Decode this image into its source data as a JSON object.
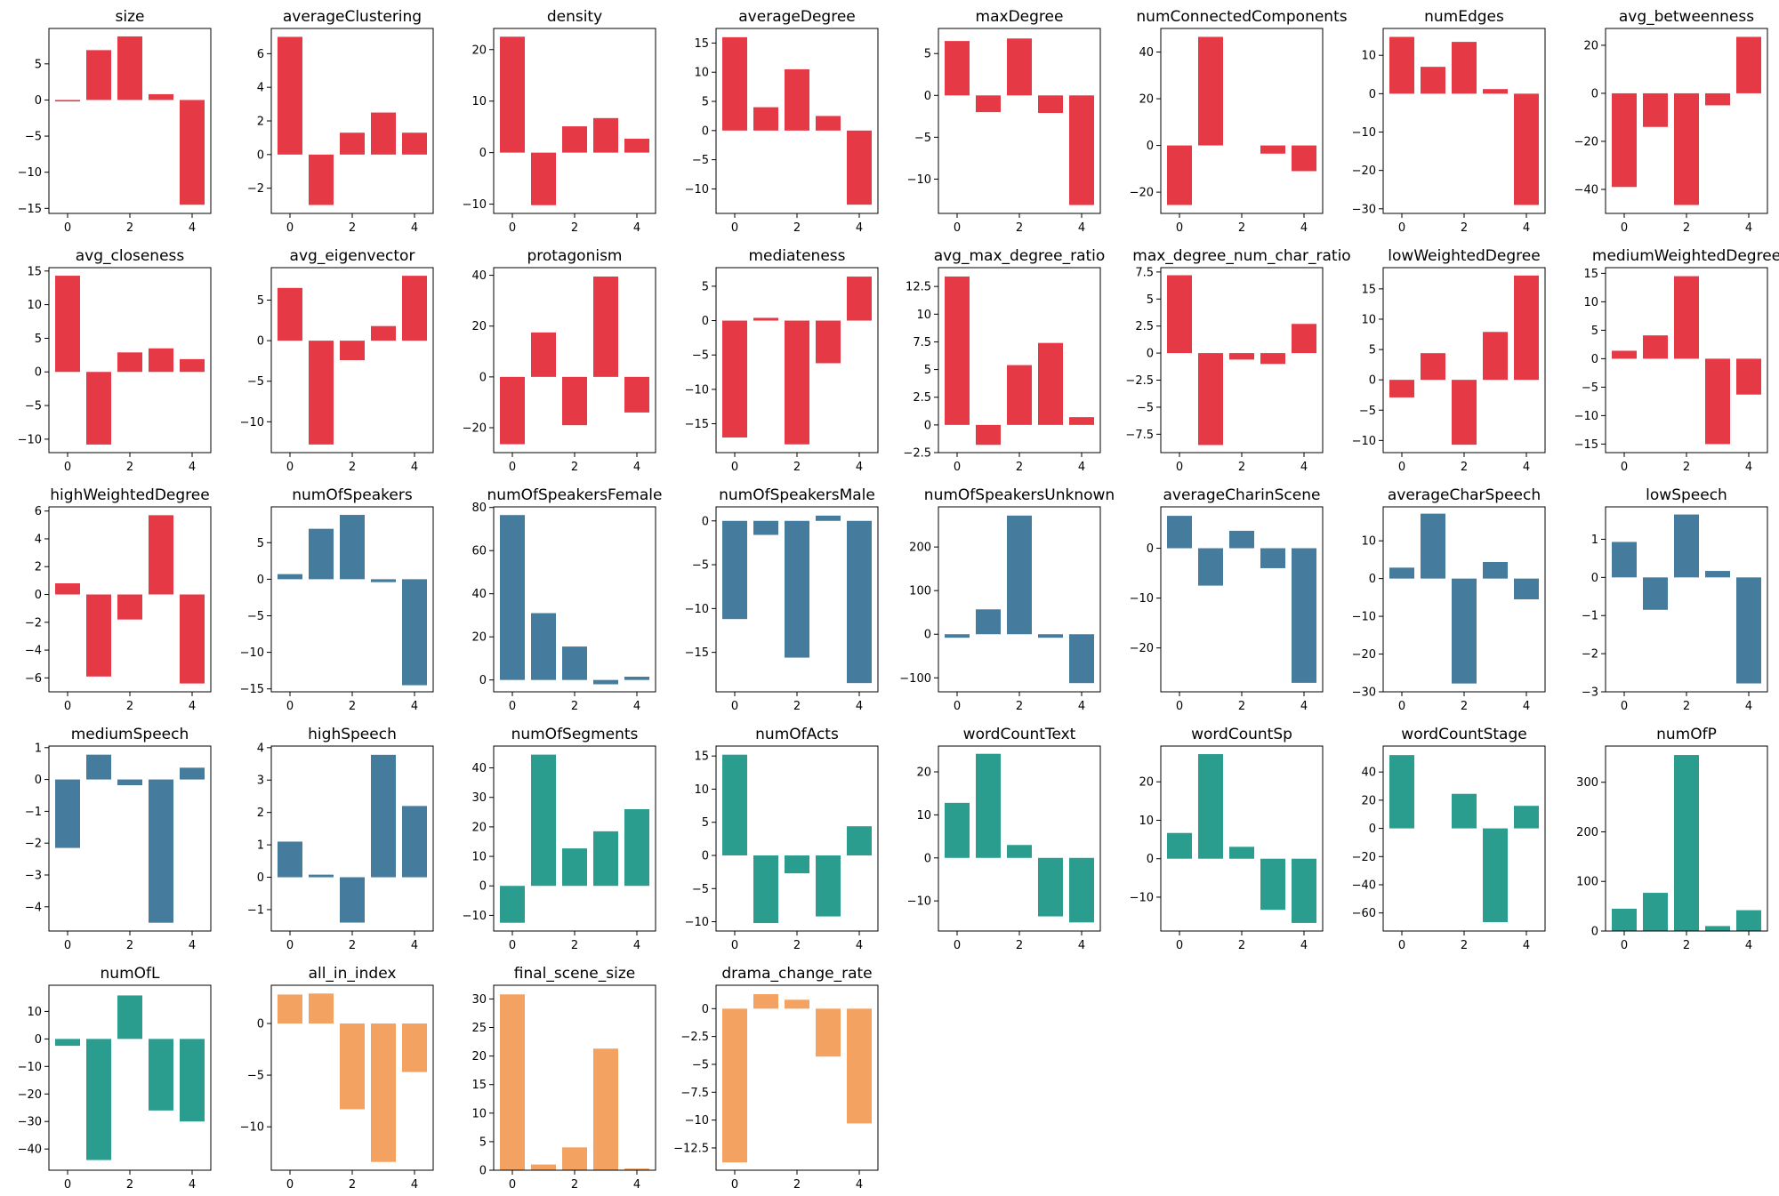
{
  "colors": {
    "red": "#e63946",
    "blue": "#457b9d",
    "teal": "#2a9d8f",
    "orange": "#f4a261"
  },
  "chart_data": [
    {
      "type": "bar",
      "title": "size",
      "categories": [
        0,
        1,
        2,
        3,
        4
      ],
      "values": [
        -0.2,
        6.9,
        8.8,
        0.8,
        -14.5
      ],
      "ylim": [
        -15.7,
        9.9
      ],
      "yticks": [
        -15,
        -10,
        -5,
        0,
        5
      ],
      "color": "red"
    },
    {
      "type": "bar",
      "title": "averageClustering",
      "categories": [
        0,
        1,
        2,
        3,
        4
      ],
      "values": [
        7.0,
        -3.0,
        1.3,
        2.5,
        1.3
      ],
      "ylim": [
        -3.5,
        7.5
      ],
      "yticks": [
        -2,
        0,
        2,
        4,
        6
      ],
      "color": "red"
    },
    {
      "type": "bar",
      "title": "density",
      "categories": [
        0,
        1,
        2,
        3,
        4
      ],
      "values": [
        22.5,
        -10.2,
        5.1,
        6.7,
        2.7
      ],
      "ylim": [
        -11.8,
        24.1
      ],
      "yticks": [
        -10,
        0,
        10,
        20
      ],
      "color": "red"
    },
    {
      "type": "bar",
      "title": "averageDegree",
      "categories": [
        0,
        1,
        2,
        3,
        4
      ],
      "values": [
        16.0,
        4.0,
        10.5,
        2.5,
        -12.7
      ],
      "ylim": [
        -14.2,
        17.5
      ],
      "yticks": [
        -10,
        -5,
        0,
        5,
        10,
        15
      ],
      "color": "red"
    },
    {
      "type": "bar",
      "title": "maxDegree",
      "categories": [
        0,
        1,
        2,
        3,
        4
      ],
      "values": [
        6.5,
        -2.0,
        6.8,
        -2.1,
        -13.1
      ],
      "ylim": [
        -14.1,
        8.0
      ],
      "yticks": [
        -10,
        -5,
        0,
        5
      ],
      "color": "red"
    },
    {
      "type": "bar",
      "title": "numConnectedComponents",
      "categories": [
        0,
        1,
        2,
        3,
        4
      ],
      "values": [
        -25.5,
        46.5,
        0,
        -3.5,
        -11.0
      ],
      "ylim": [
        -29.1,
        50.1
      ],
      "yticks": [
        -20,
        0,
        20,
        40
      ],
      "color": "red"
    },
    {
      "type": "bar",
      "title": "numEdges",
      "categories": [
        0,
        1,
        2,
        3,
        4
      ],
      "values": [
        14.8,
        7.0,
        13.5,
        1.2,
        -29.0
      ],
      "ylim": [
        -31.2,
        17.0
      ],
      "yticks": [
        -30,
        -20,
        -10,
        0,
        10
      ],
      "color": "red"
    },
    {
      "type": "bar",
      "title": "avg_betweenness",
      "categories": [
        0,
        1,
        2,
        3,
        4
      ],
      "values": [
        -39.0,
        -14.0,
        -46.5,
        -5.0,
        23.5
      ],
      "ylim": [
        -50.0,
        27.0
      ],
      "yticks": [
        -40,
        -20,
        0,
        20
      ],
      "color": "red"
    },
    {
      "type": "bar",
      "title": "avg_closeness",
      "categories": [
        0,
        1,
        2,
        3,
        4
      ],
      "values": [
        14.3,
        -10.8,
        2.9,
        3.5,
        1.9
      ],
      "ylim": [
        -12.0,
        15.5
      ],
      "yticks": [
        -10,
        -5,
        0,
        5,
        10,
        15
      ],
      "color": "red"
    },
    {
      "type": "bar",
      "title": "avg_eigenvector",
      "categories": [
        0,
        1,
        2,
        3,
        4
      ],
      "values": [
        6.5,
        -12.8,
        -2.4,
        1.8,
        8.0
      ],
      "ylim": [
        -13.8,
        9.0
      ],
      "yticks": [
        -10,
        -5,
        0,
        5
      ],
      "color": "red"
    },
    {
      "type": "bar",
      "title": "protagonism",
      "categories": [
        0,
        1,
        2,
        3,
        4
      ],
      "values": [
        -26.5,
        17.5,
        -19.0,
        39.5,
        -14.0
      ],
      "ylim": [
        -29.8,
        43.0
      ],
      "yticks": [
        -20,
        0,
        20,
        40
      ],
      "color": "red"
    },
    {
      "type": "bar",
      "title": "mediateness",
      "categories": [
        0,
        1,
        2,
        3,
        4
      ],
      "values": [
        -17.0,
        0.4,
        -18.0,
        -6.2,
        6.4
      ],
      "ylim": [
        -19.2,
        7.7
      ],
      "yticks": [
        -15,
        -10,
        -5,
        0,
        5
      ],
      "color": "red"
    },
    {
      "type": "bar",
      "title": "avg_max_degree_ratio",
      "categories": [
        0,
        1,
        2,
        3,
        4
      ],
      "values": [
        13.4,
        -1.8,
        5.4,
        7.4,
        0.7
      ],
      "ylim": [
        -2.5,
        14.2
      ],
      "yticks": [
        -2.5,
        0.0,
        2.5,
        5.0,
        7.5,
        10.0,
        12.5
      ],
      "color": "red"
    },
    {
      "type": "bar",
      "title": "max_degree_num_char_ratio",
      "categories": [
        0,
        1,
        2,
        3,
        4
      ],
      "values": [
        7.2,
        -8.5,
        -0.6,
        -1.0,
        2.7
      ],
      "ylim": [
        -9.2,
        7.9
      ],
      "yticks": [
        -7.5,
        -5.0,
        -2.5,
        0.0,
        2.5,
        5.0,
        7.5
      ],
      "color": "red"
    },
    {
      "type": "bar",
      "title": "lowWeightedDegree",
      "categories": [
        0,
        1,
        2,
        3,
        4
      ],
      "values": [
        -2.9,
        4.4,
        -10.7,
        7.9,
        17.2
      ],
      "ylim": [
        -12.0,
        18.5
      ],
      "yticks": [
        -10,
        -5,
        0,
        5,
        10,
        15
      ],
      "color": "red"
    },
    {
      "type": "bar",
      "title": "mediumWeightedDegree",
      "categories": [
        0,
        1,
        2,
        3,
        4
      ],
      "values": [
        1.4,
        4.1,
        14.5,
        -15.0,
        -6.3
      ],
      "ylim": [
        -16.5,
        16.0
      ],
      "yticks": [
        -15,
        -10,
        -5,
        0,
        5,
        10,
        15
      ],
      "color": "red"
    },
    {
      "type": "bar",
      "title": "highWeightedDegree",
      "categories": [
        0,
        1,
        2,
        3,
        4
      ],
      "values": [
        0.8,
        -5.9,
        -1.8,
        5.7,
        -6.4
      ],
      "ylim": [
        -7.0,
        6.3
      ],
      "yticks": [
        -6,
        -4,
        -2,
        0,
        2,
        4,
        6
      ],
      "color": "red"
    },
    {
      "type": "bar",
      "title": "numOfSpeakers",
      "categories": [
        0,
        1,
        2,
        3,
        4
      ],
      "values": [
        0.7,
        6.9,
        8.8,
        -0.4,
        -14.5
      ],
      "ylim": [
        -15.4,
        9.9
      ],
      "yticks": [
        -15,
        -10,
        -5,
        0,
        5
      ],
      "color": "blue"
    },
    {
      "type": "bar",
      "title": "numOfSpeakersFemale",
      "categories": [
        0,
        1,
        2,
        3,
        4
      ],
      "values": [
        76.5,
        31.0,
        15.5,
        -2.0,
        1.5
      ],
      "ylim": [
        -5.5,
        80.3
      ],
      "yticks": [
        0,
        20,
        40,
        60,
        80
      ],
      "color": "blue"
    },
    {
      "type": "bar",
      "title": "numOfSpeakersMale",
      "categories": [
        0,
        1,
        2,
        3,
        4
      ],
      "values": [
        -11.2,
        -1.6,
        -15.6,
        0.6,
        -18.5
      ],
      "ylim": [
        -19.5,
        1.6
      ],
      "yticks": [
        -15,
        -10,
        -5,
        0
      ],
      "color": "blue"
    },
    {
      "type": "bar",
      "title": "numOfSpeakersUnknown",
      "categories": [
        0,
        1,
        2,
        3,
        4
      ],
      "values": [
        -8.0,
        57.0,
        272.0,
        -8.0,
        -112.0
      ],
      "ylim": [
        -132.0,
        292.0
      ],
      "yticks": [
        -100,
        0,
        100,
        200
      ],
      "color": "blue"
    },
    {
      "type": "bar",
      "title": "averageCharinScene",
      "categories": [
        0,
        1,
        2,
        3,
        4
      ],
      "values": [
        6.5,
        -7.5,
        3.5,
        -4.0,
        -27.0
      ],
      "ylim": [
        -28.8,
        8.3
      ],
      "yticks": [
        -20,
        -10,
        0
      ],
      "color": "blue"
    },
    {
      "type": "bar",
      "title": "averageCharSpeech",
      "categories": [
        0,
        1,
        2,
        3,
        4
      ],
      "values": [
        2.9,
        17.2,
        -27.8,
        4.4,
        -5.5
      ],
      "ylim": [
        -30.0,
        19.0
      ],
      "yticks": [
        -30,
        -20,
        -10,
        0,
        10
      ],
      "color": "blue"
    },
    {
      "type": "bar",
      "title": "lowSpeech",
      "categories": [
        0,
        1,
        2,
        3,
        4
      ],
      "values": [
        0.93,
        -0.85,
        1.65,
        0.17,
        -2.78
      ],
      "ylim": [
        -3.0,
        1.85
      ],
      "yticks": [
        -3,
        -2,
        -1,
        0,
        1
      ],
      "color": "blue"
    },
    {
      "type": "bar",
      "title": "mediumSpeech",
      "categories": [
        0,
        1,
        2,
        3,
        4
      ],
      "values": [
        -2.15,
        0.78,
        -0.18,
        -4.5,
        0.37
      ],
      "ylim": [
        -4.76,
        1.05
      ],
      "yticks": [
        -4,
        -3,
        -2,
        -1,
        0,
        1
      ],
      "color": "blue"
    },
    {
      "type": "bar",
      "title": "highSpeech",
      "categories": [
        0,
        1,
        2,
        3,
        4
      ],
      "values": [
        1.1,
        0.08,
        -1.4,
        3.78,
        2.2
      ],
      "ylim": [
        -1.66,
        4.05
      ],
      "yticks": [
        -1,
        0,
        1,
        2,
        3,
        4
      ],
      "color": "blue"
    },
    {
      "type": "bar",
      "title": "numOfSegments",
      "categories": [
        0,
        1,
        2,
        3,
        4
      ],
      "values": [
        -12.5,
        44.5,
        12.7,
        18.5,
        26.0
      ],
      "ylim": [
        -15.3,
        47.4
      ],
      "yticks": [
        -10,
        0,
        10,
        20,
        30,
        40
      ],
      "color": "teal"
    },
    {
      "type": "bar",
      "title": "numOfActs",
      "categories": [
        0,
        1,
        2,
        3,
        4
      ],
      "values": [
        15.2,
        -10.2,
        -2.7,
        -9.2,
        4.4
      ],
      "ylim": [
        -11.4,
        16.5
      ],
      "yticks": [
        -10,
        -5,
        0,
        5,
        10,
        15
      ],
      "color": "teal"
    },
    {
      "type": "bar",
      "title": "wordCountText",
      "categories": [
        0,
        1,
        2,
        3,
        4
      ],
      "values": [
        12.8,
        24.2,
        3.0,
        -13.6,
        -15.0
      ],
      "ylim": [
        -17.0,
        26.0
      ],
      "yticks": [
        -10,
        0,
        10,
        20
      ],
      "color": "teal"
    },
    {
      "type": "bar",
      "title": "wordCountSp",
      "categories": [
        0,
        1,
        2,
        3,
        4
      ],
      "values": [
        6.7,
        27.2,
        3.1,
        -13.3,
        -16.7
      ],
      "ylim": [
        -18.8,
        29.3
      ],
      "yticks": [
        -10,
        0,
        10,
        20
      ],
      "color": "teal"
    },
    {
      "type": "bar",
      "title": "wordCountStage",
      "categories": [
        0,
        1,
        2,
        3,
        4
      ],
      "values": [
        52.0,
        0,
        24.5,
        -66.5,
        16.0
      ],
      "ylim": [
        -72.8,
        58.4
      ],
      "yticks": [
        -60,
        -40,
        -20,
        0,
        20,
        40
      ],
      "color": "teal"
    },
    {
      "type": "bar",
      "title": "numOfP",
      "categories": [
        0,
        1,
        2,
        3,
        4
      ],
      "values": [
        45.0,
        77.0,
        355.0,
        10.0,
        42.0
      ],
      "ylim": [
        0,
        373.0
      ],
      "yticks": [
        0,
        100,
        200,
        300
      ],
      "color": "teal"
    },
    {
      "type": "bar",
      "title": "numOfL",
      "categories": [
        0,
        1,
        2,
        3,
        4
      ],
      "values": [
        -2.5,
        -44.0,
        15.8,
        -26.0,
        -30.0
      ],
      "ylim": [
        -47.7,
        19.5
      ],
      "yticks": [
        -40,
        -30,
        -20,
        -10,
        0,
        10
      ],
      "color": "teal"
    },
    {
      "type": "bar",
      "title": "all_in_index",
      "categories": [
        0,
        1,
        2,
        3,
        4
      ],
      "values": [
        2.8,
        2.9,
        -8.3,
        -13.4,
        -4.7
      ],
      "ylim": [
        -14.2,
        3.7
      ],
      "yticks": [
        -10,
        -5,
        0
      ],
      "color": "orange"
    },
    {
      "type": "bar",
      "title": "final_scene_size",
      "categories": [
        0,
        1,
        2,
        3,
        4
      ],
      "values": [
        30.8,
        1.0,
        4.0,
        21.3,
        0.3
      ],
      "ylim": [
        0,
        32.4
      ],
      "yticks": [
        0,
        5,
        10,
        15,
        20,
        25,
        30
      ],
      "color": "orange"
    },
    {
      "type": "bar",
      "title": "drama_change_rate",
      "categories": [
        0,
        1,
        2,
        3,
        4
      ],
      "values": [
        -13.8,
        1.3,
        0.8,
        -4.3,
        -10.3
      ],
      "ylim": [
        -14.5,
        2.1
      ],
      "yticks": [
        -12.5,
        -10.0,
        -7.5,
        -5.0,
        -2.5,
        0.0
      ],
      "color": "orange"
    }
  ]
}
